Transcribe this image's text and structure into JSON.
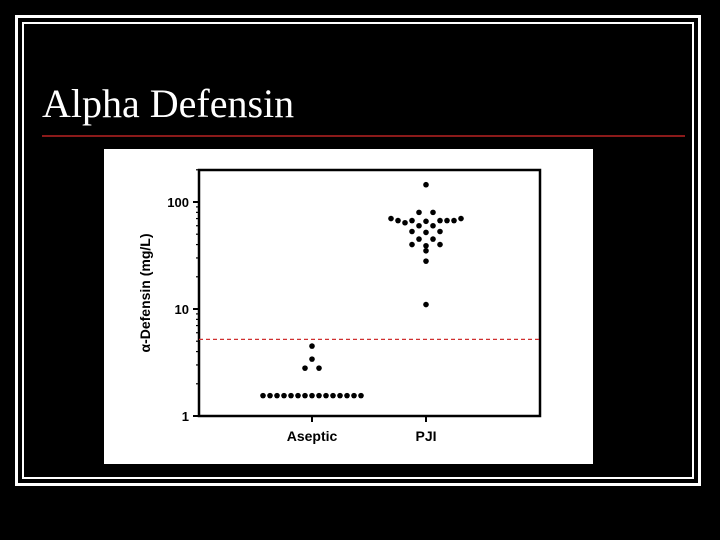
{
  "slide": {
    "title": "Alpha Defensin",
    "rule_color": "#8b1a1a",
    "background": "#000000"
  },
  "chart_data": {
    "type": "scatter",
    "style": "dot-plot",
    "title": "",
    "xlabel": "",
    "ylabel": "α-Defensin (mg/L)",
    "y_scale": "log",
    "ylim": [
      1,
      200
    ],
    "y_ticks": [
      1,
      10,
      100
    ],
    "y_tick_labels": [
      "1",
      "10",
      "100"
    ],
    "categories": [
      "Aseptic",
      "PJI"
    ],
    "series": [
      {
        "category": "Aseptic",
        "points": [
          {
            "x": -7,
            "y": 1.55
          },
          {
            "x": -6,
            "y": 1.55
          },
          {
            "x": -5,
            "y": 1.55
          },
          {
            "x": -4,
            "y": 1.55
          },
          {
            "x": -3,
            "y": 1.55
          },
          {
            "x": -2,
            "y": 1.55
          },
          {
            "x": -1,
            "y": 1.55
          },
          {
            "x": 0,
            "y": 1.55
          },
          {
            "x": 1,
            "y": 1.55
          },
          {
            "x": 2,
            "y": 1.55
          },
          {
            "x": 3,
            "y": 1.55
          },
          {
            "x": 4,
            "y": 1.55
          },
          {
            "x": 5,
            "y": 1.55
          },
          {
            "x": 6,
            "y": 1.55
          },
          {
            "x": 7,
            "y": 1.55
          },
          {
            "x": -1,
            "y": 2.8
          },
          {
            "x": 1,
            "y": 2.8
          },
          {
            "x": 0,
            "y": 3.4
          },
          {
            "x": 0,
            "y": 4.5
          }
        ]
      },
      {
        "category": "PJI",
        "points": [
          {
            "x": 0,
            "y": 145
          },
          {
            "x": -1,
            "y": 80
          },
          {
            "x": 1,
            "y": 80
          },
          {
            "x": -5,
            "y": 70
          },
          {
            "x": -4,
            "y": 67
          },
          {
            "x": -2,
            "y": 67
          },
          {
            "x": 0,
            "y": 66
          },
          {
            "x": 2,
            "y": 67
          },
          {
            "x": 3,
            "y": 67
          },
          {
            "x": 5,
            "y": 70
          },
          {
            "x": 4,
            "y": 67
          },
          {
            "x": -3,
            "y": 64
          },
          {
            "x": -1,
            "y": 60
          },
          {
            "x": 1,
            "y": 60
          },
          {
            "x": -2,
            "y": 53
          },
          {
            "x": 0,
            "y": 52
          },
          {
            "x": 2,
            "y": 53
          },
          {
            "x": -1,
            "y": 45
          },
          {
            "x": 1,
            "y": 45
          },
          {
            "x": -2,
            "y": 40
          },
          {
            "x": 0,
            "y": 39
          },
          {
            "x": 2,
            "y": 40
          },
          {
            "x": 0,
            "y": 35
          },
          {
            "x": 0,
            "y": 28
          },
          {
            "x": 0,
            "y": 11
          }
        ]
      }
    ],
    "reference_line": {
      "y": 5.2,
      "color": "#d03030",
      "style": "dashed"
    },
    "grid": false,
    "marker_color": "#000000"
  }
}
